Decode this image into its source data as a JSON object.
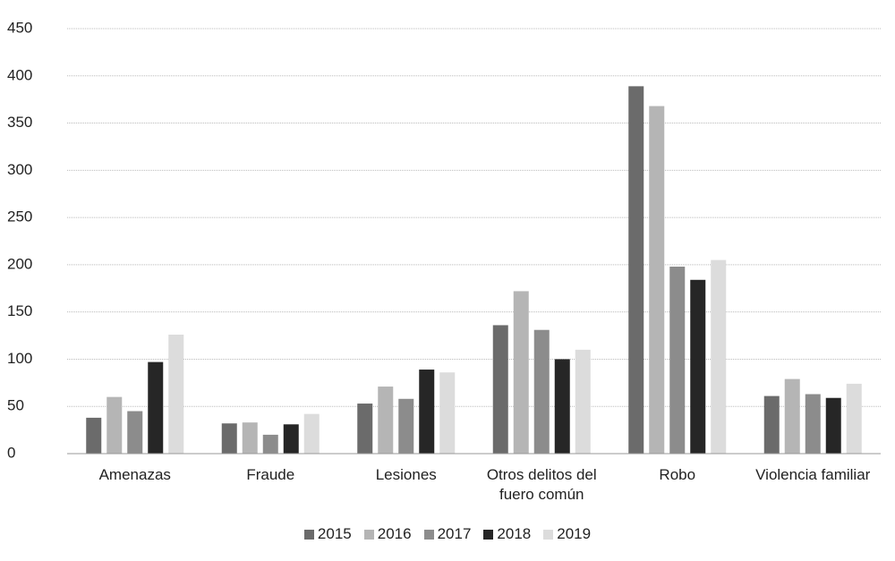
{
  "chart_data": {
    "type": "bar",
    "categories": [
      "Amenazas",
      "Fraude",
      "Lesiones",
      "Otros delitos del fuero común",
      "Robo",
      "Violencia familiar"
    ],
    "series": [
      {
        "name": "2015",
        "color": "#6b6b6b",
        "values": [
          38,
          32,
          53,
          136,
          389,
          61
        ]
      },
      {
        "name": "2016",
        "color": "#b5b5b5",
        "values": [
          60,
          33,
          71,
          172,
          368,
          79
        ]
      },
      {
        "name": "2017",
        "color": "#8c8c8c",
        "values": [
          45,
          20,
          58,
          131,
          198,
          63
        ]
      },
      {
        "name": "2018",
        "color": "#262626",
        "values": [
          97,
          31,
          89,
          100,
          184,
          59
        ]
      },
      {
        "name": "2019",
        "color": "#dcdcdc",
        "values": [
          126,
          42,
          86,
          110,
          205,
          74
        ]
      }
    ],
    "ylim": [
      0,
      450
    ],
    "yticks": [
      0,
      50,
      100,
      150,
      200,
      250,
      300,
      350,
      400,
      450
    ],
    "grid": true,
    "legend": "bottom"
  }
}
